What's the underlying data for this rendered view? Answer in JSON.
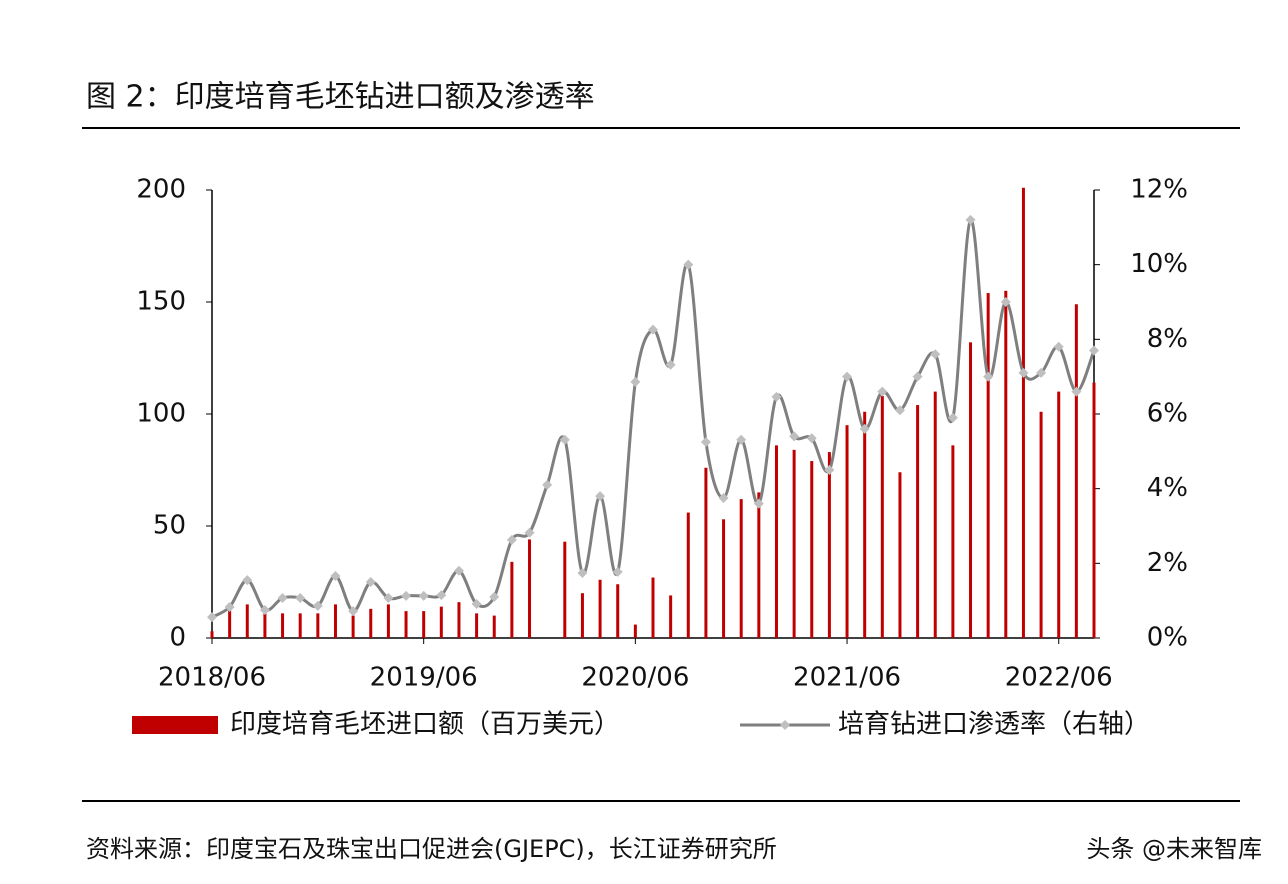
{
  "chart_data": {
    "type": "bar_line",
    "title": "图 2：印度培育毛坯钻进口额及渗透率",
    "source": "资料来源：印度宝石及珠宝出口促进会(GJEPC)，长江证券研究所",
    "watermark": "头条 @未来智库",
    "categories": [
      "2018/06",
      null,
      null,
      null,
      null,
      null,
      null,
      null,
      null,
      null,
      null,
      null,
      "2019/06",
      null,
      null,
      null,
      null,
      null,
      null,
      null,
      null,
      null,
      null,
      null,
      "2020/06",
      null,
      null,
      null,
      null,
      null,
      null,
      null,
      null,
      null,
      null,
      null,
      "2021/06",
      null,
      null,
      null,
      null,
      null,
      null,
      null,
      null,
      null,
      null,
      null,
      "2022/06",
      null,
      null
    ],
    "series": [
      {
        "name": "印度培育毛坯进口额（百万美元）",
        "color": "#c00000",
        "kind": "bar",
        "values": [
          3,
          14,
          15,
          11,
          11,
          11,
          11,
          15,
          10,
          13,
          15,
          12,
          12,
          14,
          16,
          11,
          10,
          34,
          44,
          0,
          43,
          20,
          26,
          24,
          6,
          27,
          19,
          56,
          76,
          53,
          62,
          65,
          86,
          84,
          79,
          83,
          95,
          101,
          108,
          74,
          104,
          110,
          86,
          132,
          154,
          155,
          201,
          101,
          110,
          149,
          114
        ]
      },
      {
        "name": "培育钻进口渗透率（右轴）",
        "color": "#7f7f7f",
        "kind": "line",
        "axis": "y2",
        "values": [
          0.56,
          0.83,
          1.55,
          0.75,
          1.07,
          1.07,
          0.86,
          1.66,
          0.72,
          1.5,
          1.07,
          1.13,
          1.13,
          1.15,
          1.8,
          0.91,
          1.1,
          2.63,
          2.82,
          4.1,
          5.31,
          1.74,
          3.8,
          1.77,
          6.86,
          8.26,
          7.32,
          10.0,
          5.25,
          3.75,
          5.31,
          3.6,
          6.46,
          5.4,
          5.35,
          4.5,
          7.0,
          5.6,
          6.6,
          6.1,
          7.0,
          7.6,
          5.9,
          11.2,
          7.0,
          9.0,
          7.1,
          7.1,
          7.8,
          6.6,
          7.7
        ]
      }
    ],
    "ylim": [
      0,
      200
    ],
    "yticks": [
      0,
      50,
      100,
      150,
      200
    ],
    "y2lim": [
      0,
      12
    ],
    "y2ticks": [
      {
        "value": 0,
        "label": "0%"
      },
      {
        "value": 2,
        "label": "2%"
      },
      {
        "value": 4,
        "label": "4%"
      },
      {
        "value": 6,
        "label": "6%"
      },
      {
        "value": 8,
        "label": "8%"
      },
      {
        "value": 10,
        "label": "10%"
      },
      {
        "value": 12,
        "label": "12%"
      }
    ]
  }
}
